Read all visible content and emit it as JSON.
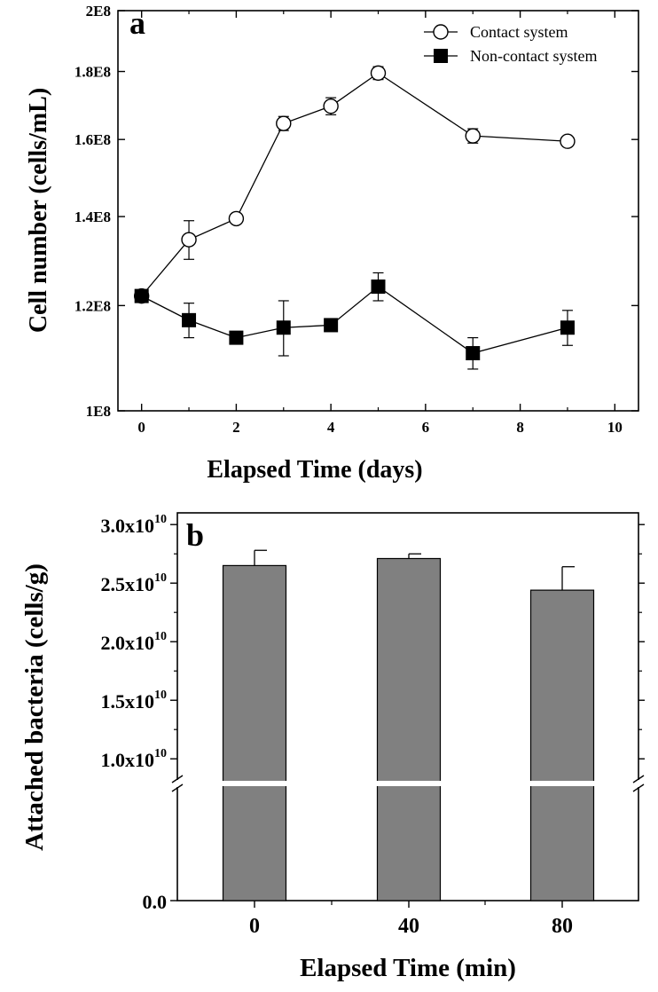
{
  "chart_data": [
    {
      "type": "line",
      "panel_label": "a",
      "xlabel": "Elapsed Time (days)",
      "ylabel": "Cell number (cells/mL)",
      "xlim": [
        -0.5,
        10.5
      ],
      "ylim": [
        100000000.0,
        200000000.0
      ],
      "yscale": "log",
      "xticks": [
        0,
        2,
        4,
        6,
        8,
        10
      ],
      "xtick_labels": [
        "0",
        "2",
        "4",
        "6",
        "8",
        "10"
      ],
      "yticks": [
        100000000.0,
        120000000.0,
        140000000.0,
        160000000.0,
        180000000.0,
        200000000.0
      ],
      "ytick_labels": [
        "1E8",
        "1.2E8",
        "1.4E8",
        "1.6E8",
        "1.8E8",
        "2E8"
      ],
      "grid": false,
      "legend": "top-right",
      "series": [
        {
          "name": "Contact system",
          "marker": "open-circle",
          "x": [
            0,
            1,
            2,
            3,
            4,
            5,
            7,
            9
          ],
          "y": [
            122000000.0,
            134500000.0,
            139500000.0,
            164500000.0,
            169500000.0,
            179500000.0,
            161000000.0,
            159500000.0
          ],
          "error": [
            300000.0,
            4500000.0,
            1000000.0,
            2000000.0,
            2500000.0,
            2000000.0,
            2000000.0,
            1000000.0
          ]
        },
        {
          "name": "Non-contact system",
          "marker": "filled-square",
          "x": [
            0,
            1,
            2,
            3,
            4,
            5,
            7,
            9
          ],
          "y": [
            122000000.0,
            117000000.0,
            113500000.0,
            115500000.0,
            116000000.0,
            124000000.0,
            110500000.0,
            115500000.0
          ],
          "error": [
            500000.0,
            3500000.0,
            300000.0,
            5500000.0,
            500000.0,
            3000000.0,
            3000000.0,
            3500000.0
          ]
        }
      ]
    },
    {
      "type": "bar",
      "panel_label": "b",
      "xlabel": "Elapsed Time (min)",
      "ylabel": "Attached bacteria (cells/g)",
      "categories": [
        "0",
        "40",
        "80"
      ],
      "values": [
        26500000000.0,
        27100000000.0,
        24400000000.0
      ],
      "error": [
        1300000000.0,
        400000000.0,
        2000000000.0
      ],
      "bar_color": "#808080",
      "axis_break": true,
      "ylim_upper": [
        8500000000.0,
        31000000000.0
      ],
      "yticks_upper": [
        10000000000.0,
        15000000000.0,
        20000000000.0,
        25000000000.0,
        30000000000.0
      ],
      "ytick_mantissa": [
        "1.0x10",
        "1.5x10",
        "2.0x10",
        "2.5x10",
        "3.0x10"
      ],
      "ytick_exponent": "10",
      "ytick_zero": "0.0"
    }
  ]
}
